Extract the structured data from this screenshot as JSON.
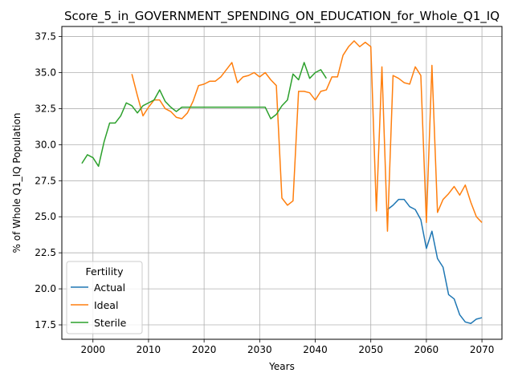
{
  "chart_data": {
    "type": "line",
    "title": "Score_5_in_GOVERNMENT_SPENDING_ON_EDUCATION_for_Whole_Q1_IQ",
    "xlabel": "Years",
    "ylabel": "% of Whole Q1_IQ Population",
    "xlim": [
      1994.4,
      2073.6
    ],
    "ylim": [
      16.5,
      38.2
    ],
    "xticks": [
      2000,
      2010,
      2020,
      2030,
      2040,
      2050,
      2060,
      2070
    ],
    "xtick_labels": [
      "2000",
      "2010",
      "2020",
      "2030",
      "2040",
      "2050",
      "2060",
      "2070"
    ],
    "yticks": [
      17.5,
      20.0,
      22.5,
      25.0,
      27.5,
      30.0,
      32.5,
      35.0,
      37.5
    ],
    "ytick_labels": [
      "17.5",
      "20.0",
      "22.5",
      "25.0",
      "27.5",
      "30.0",
      "32.5",
      "35.0",
      "37.5"
    ],
    "grid": true,
    "legend": {
      "title": "Fertility",
      "placement": "lower-left"
    },
    "series": [
      {
        "name": "Actual",
        "color": "#1f77b4",
        "x": [
          2053,
          2054,
          2055,
          2056,
          2057,
          2058,
          2059,
          2060,
          2061,
          2062,
          2063,
          2064,
          2065,
          2066,
          2067,
          2068,
          2069,
          2070
        ],
        "y": [
          25.5,
          25.8,
          26.2,
          26.2,
          25.7,
          25.5,
          24.8,
          22.8,
          24.0,
          22.1,
          21.5,
          19.6,
          19.3,
          18.2,
          17.7,
          17.6,
          17.9,
          18.0
        ]
      },
      {
        "name": "Ideal",
        "color": "#ff7f0e",
        "x": [
          2007,
          2008,
          2009,
          2010,
          2011,
          2012,
          2013,
          2014,
          2015,
          2016,
          2017,
          2018,
          2019,
          2020,
          2021,
          2022,
          2023,
          2024,
          2025,
          2026,
          2027,
          2028,
          2029,
          2030,
          2031,
          2032,
          2033,
          2034,
          2035,
          2036,
          2037,
          2038,
          2039,
          2040,
          2041,
          2042,
          2043,
          2044,
          2045,
          2046,
          2047,
          2048,
          2049,
          2050,
          2051,
          2052,
          2053,
          2054,
          2055,
          2056,
          2057,
          2058,
          2059,
          2060,
          2061,
          2062,
          2063,
          2064,
          2065,
          2066,
          2067,
          2068,
          2069,
          2070
        ],
        "y": [
          34.9,
          33.4,
          32.0,
          32.6,
          33.1,
          33.1,
          32.5,
          32.3,
          31.9,
          31.8,
          32.2,
          33.0,
          34.1,
          34.2,
          34.4,
          34.4,
          34.7,
          35.2,
          35.7,
          34.3,
          34.7,
          34.8,
          35.0,
          34.7,
          35.0,
          34.5,
          34.1,
          26.3,
          25.8,
          26.1,
          33.7,
          33.7,
          33.6,
          33.1,
          33.7,
          33.8,
          34.7,
          34.7,
          36.2,
          36.8,
          37.2,
          36.8,
          37.1,
          36.8,
          25.4,
          35.4,
          24.0,
          34.8,
          34.6,
          34.3,
          34.2,
          35.4,
          34.8,
          24.6,
          35.5,
          25.3,
          26.2,
          26.6,
          27.1,
          26.5,
          27.2,
          26.0,
          25.0,
          24.6
        ]
      },
      {
        "name": "Sterile",
        "color": "#2ca02c",
        "x": [
          1998,
          1999,
          2000,
          2001,
          2002,
          2003,
          2004,
          2005,
          2006,
          2007,
          2008,
          2009,
          2010,
          2011,
          2012,
          2013,
          2014,
          2015,
          2016,
          2017,
          2018,
          2019,
          2020,
          2021,
          2022,
          2023,
          2024,
          2025,
          2026,
          2027,
          2028,
          2029,
          2030,
          2031,
          2032,
          2033,
          2034,
          2035,
          2036,
          2037,
          2038,
          2039,
          2040,
          2041,
          2042
        ],
        "y": [
          28.7,
          29.3,
          29.1,
          28.5,
          30.2,
          31.5,
          31.5,
          32.0,
          32.9,
          32.7,
          32.2,
          32.7,
          32.9,
          33.1,
          33.8,
          33.0,
          32.6,
          32.3,
          32.6,
          32.6,
          32.6,
          32.6,
          32.6,
          32.6,
          32.6,
          32.6,
          32.6,
          32.6,
          32.6,
          32.6,
          32.6,
          32.6,
          32.6,
          32.6,
          31.8,
          32.1,
          32.7,
          33.1,
          34.9,
          34.5,
          35.7,
          34.6,
          35.0,
          35.2,
          34.6
        ]
      }
    ]
  }
}
